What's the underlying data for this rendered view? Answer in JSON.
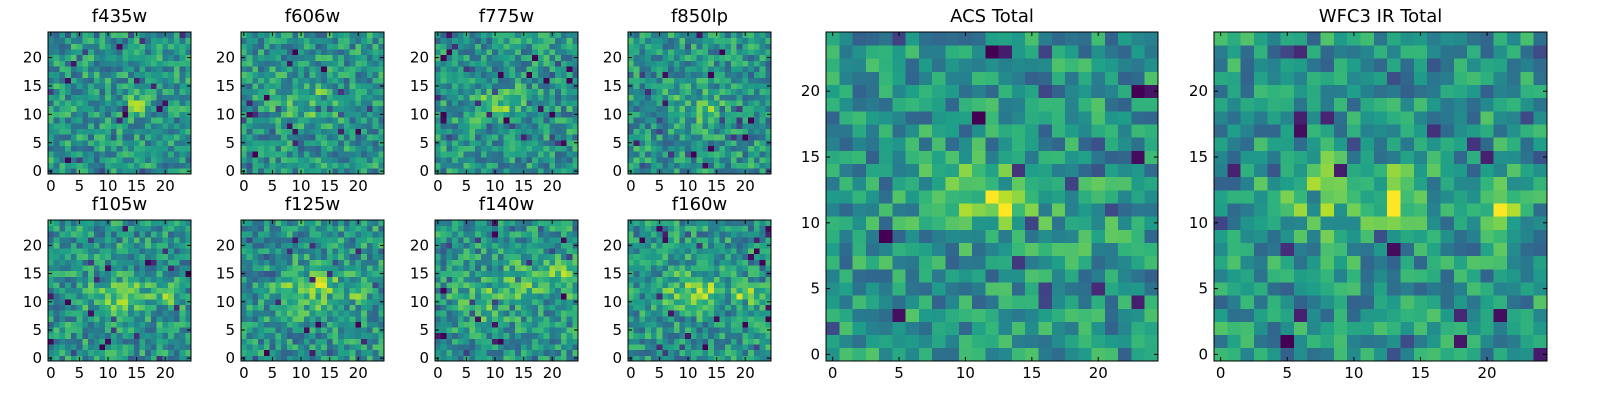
{
  "chart_data": [
    {
      "type": "heatmap",
      "title": "f435w",
      "xlim": [
        -0.5,
        24.5
      ],
      "ylim": [
        -0.5,
        24.5
      ],
      "xticks": [
        0,
        5,
        10,
        15,
        20
      ],
      "yticks": [
        0,
        5,
        10,
        15,
        20
      ],
      "colormap": "viridis",
      "origin": "lower",
      "shape": [
        25,
        25
      ],
      "values": [],
      "features": [
        {
          "x": 15,
          "y": 12,
          "amplitude": 0.2,
          "sigma": 1.8
        }
      ]
    },
    {
      "type": "heatmap",
      "title": "f606w",
      "xlim": [
        -0.5,
        24.5
      ],
      "ylim": [
        -0.5,
        24.5
      ],
      "xticks": [
        0,
        5,
        10,
        15,
        20
      ],
      "yticks": [
        0,
        5,
        10,
        15,
        20
      ],
      "colormap": "viridis",
      "origin": "lower",
      "shape": [
        25,
        25
      ],
      "values": [],
      "features": [
        {
          "x": 14,
          "y": 12,
          "amplitude": 0.25,
          "sigma": 1.8
        },
        {
          "x": 8,
          "y": 12,
          "amplitude": 0.1,
          "sigma": 2.5
        }
      ]
    },
    {
      "type": "heatmap",
      "title": "f775w",
      "xlim": [
        -0.5,
        24.5
      ],
      "ylim": [
        -0.5,
        24.5
      ],
      "xticks": [
        0,
        5,
        10,
        15,
        20
      ],
      "yticks": [
        0,
        5,
        10,
        15,
        20
      ],
      "colormap": "viridis",
      "origin": "lower",
      "shape": [
        25,
        25
      ],
      "values": [],
      "features": [
        {
          "x": 13,
          "y": 12,
          "amplitude": 0.22,
          "sigma": 1.8
        },
        {
          "x": 8,
          "y": 12,
          "amplitude": 0.14,
          "sigma": 2.0
        }
      ]
    },
    {
      "type": "heatmap",
      "title": "f850lp",
      "xlim": [
        -0.5,
        24.5
      ],
      "ylim": [
        -0.5,
        24.5
      ],
      "xticks": [
        0,
        5,
        10,
        15,
        20
      ],
      "yticks": [
        0,
        5,
        10,
        15,
        20
      ],
      "colormap": "viridis",
      "origin": "lower",
      "shape": [
        25,
        25
      ],
      "values": [],
      "features": [
        {
          "x": 14,
          "y": 11,
          "amplitude": 0.25,
          "sigma": 1.8
        },
        {
          "x": 8,
          "y": 12,
          "amplitude": 0.12,
          "sigma": 2.2
        }
      ]
    },
    {
      "type": "heatmap",
      "title": "f105w",
      "xlim": [
        -0.5,
        24.5
      ],
      "ylim": [
        -0.5,
        24.5
      ],
      "xticks": [
        0,
        5,
        10,
        15,
        20
      ],
      "yticks": [
        0,
        5,
        10,
        15,
        20
      ],
      "colormap": "viridis",
      "origin": "lower",
      "shape": [
        25,
        25
      ],
      "values": [],
      "features": [
        {
          "x": 14,
          "y": 11,
          "amplitude": 0.28,
          "sigma": 2.0
        },
        {
          "x": 21,
          "y": 11,
          "amplitude": 0.3,
          "sigma": 1.3
        },
        {
          "x": 9,
          "y": 11,
          "amplitude": 0.12,
          "sigma": 2.5
        }
      ]
    },
    {
      "type": "heatmap",
      "title": "f125w",
      "xlim": [
        -0.5,
        24.5
      ],
      "ylim": [
        -0.5,
        24.5
      ],
      "xticks": [
        0,
        5,
        10,
        15,
        20
      ],
      "yticks": [
        0,
        5,
        10,
        15,
        20
      ],
      "colormap": "viridis",
      "origin": "lower",
      "shape": [
        25,
        25
      ],
      "values": [],
      "features": [
        {
          "x": 14,
          "y": 12,
          "amplitude": 0.3,
          "sigma": 2.0
        },
        {
          "x": 9,
          "y": 12,
          "amplitude": 0.18,
          "sigma": 2.5
        },
        {
          "x": 20,
          "y": 12,
          "amplitude": 0.18,
          "sigma": 1.5
        }
      ]
    },
    {
      "type": "heatmap",
      "title": "f140w",
      "xlim": [
        -0.5,
        24.5
      ],
      "ylim": [
        -0.5,
        24.5
      ],
      "xticks": [
        0,
        5,
        10,
        15,
        20
      ],
      "yticks": [
        0,
        5,
        10,
        15,
        20
      ],
      "colormap": "viridis",
      "origin": "lower",
      "shape": [
        25,
        25
      ],
      "values": [],
      "features": [
        {
          "x": 14,
          "y": 13,
          "amplitude": 0.25,
          "sigma": 2.5
        },
        {
          "x": 22,
          "y": 15,
          "amplitude": 0.22,
          "sigma": 2.5
        },
        {
          "x": 7,
          "y": 10,
          "amplitude": 0.15,
          "sigma": 3.0
        }
      ]
    },
    {
      "type": "heatmap",
      "title": "f160w",
      "xlim": [
        -0.5,
        24.5
      ],
      "ylim": [
        -0.5,
        24.5
      ],
      "xticks": [
        0,
        5,
        10,
        15,
        20
      ],
      "yticks": [
        0,
        5,
        10,
        15,
        20
      ],
      "colormap": "viridis",
      "origin": "lower",
      "shape": [
        25,
        25
      ],
      "values": [],
      "features": [
        {
          "x": 20,
          "y": 11,
          "amplitude": 0.35,
          "sigma": 1.4
        },
        {
          "x": 13,
          "y": 12,
          "amplitude": 0.25,
          "sigma": 2.0
        },
        {
          "x": 8,
          "y": 12,
          "amplitude": 0.15,
          "sigma": 2.5
        }
      ]
    },
    {
      "type": "heatmap",
      "title": "ACS Total",
      "xlim": [
        -0.5,
        24.5
      ],
      "ylim": [
        -0.5,
        24.5
      ],
      "xticks": [
        0,
        5,
        10,
        15,
        20
      ],
      "yticks": [
        0,
        5,
        10,
        15,
        20
      ],
      "colormap": "viridis",
      "origin": "lower",
      "shape": [
        25,
        25
      ],
      "values": [],
      "features": [
        {
          "x": 13,
          "y": 12,
          "amplitude": 0.35,
          "sigma": 1.8
        },
        {
          "x": 9,
          "y": 12,
          "amplitude": 0.22,
          "sigma": 1.8
        },
        {
          "x": 19,
          "y": 11,
          "amplitude": 0.12,
          "sigma": 1.8
        }
      ]
    },
    {
      "type": "heatmap",
      "title": "WFC3 IR Total",
      "xlim": [
        -0.5,
        24.5
      ],
      "ylim": [
        -0.5,
        24.5
      ],
      "xticks": [
        0,
        5,
        10,
        15,
        20
      ],
      "yticks": [
        0,
        5,
        10,
        15,
        20
      ],
      "colormap": "viridis",
      "origin": "lower",
      "shape": [
        25,
        25
      ],
      "values": [],
      "features": [
        {
          "x": 13.5,
          "y": 11.5,
          "amplitude": 0.35,
          "sigma": 1.6
        },
        {
          "x": 21,
          "y": 11,
          "amplitude": 0.38,
          "sigma": 1.3
        },
        {
          "x": 8,
          "y": 12,
          "amplitude": 0.18,
          "sigma": 2.5
        }
      ]
    }
  ]
}
